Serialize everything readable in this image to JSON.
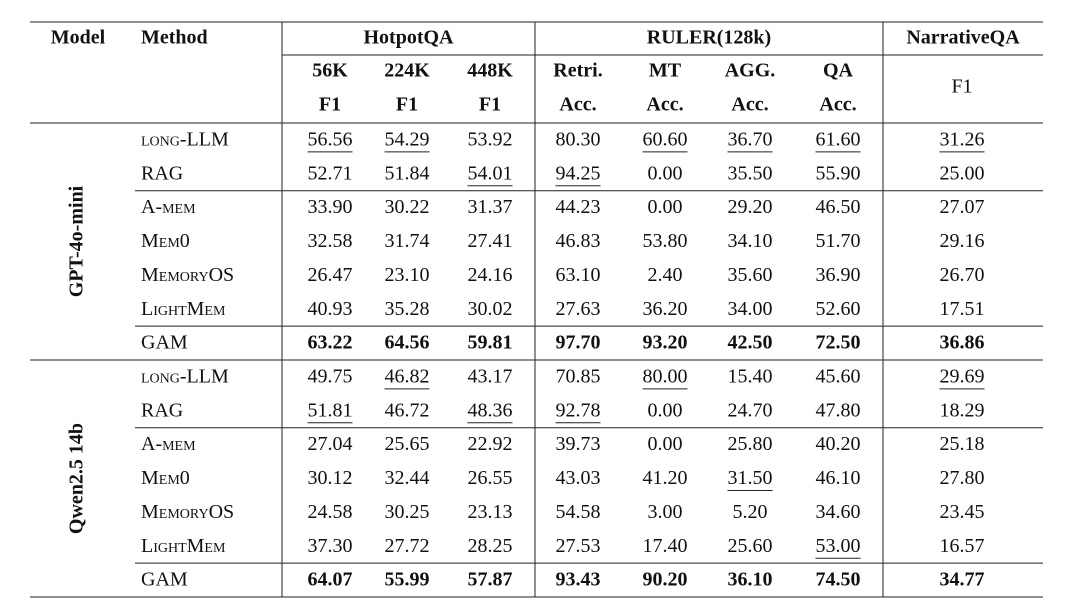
{
  "table": {
    "header": {
      "model": "Model",
      "method": "Method",
      "groups": [
        {
          "label": "HotpotQA",
          "columns": [
            [
              "56K",
              "F1"
            ],
            [
              "224K",
              "F1"
            ],
            [
              "448K",
              "F1"
            ]
          ]
        },
        {
          "label": "RULER(128k)",
          "columns": [
            [
              "Retri.",
              "Acc."
            ],
            [
              "MT",
              "Acc."
            ],
            [
              "AGG.",
              "Acc."
            ],
            [
              "QA",
              "Acc."
            ]
          ]
        },
        {
          "label": "NarrativeQA",
          "columns": [
            [
              "F1"
            ]
          ]
        }
      ]
    },
    "groups": [
      {
        "model": "GPT-4o-mini",
        "sections": [
          [
            {
              "method": "long-LLM",
              "values": [
                "56.56",
                "54.29",
                "53.92",
                "80.30",
                "60.60",
                "36.70",
                "61.60",
                "31.26"
              ],
              "underline": [
                0,
                1,
                4,
                5,
                6,
                7
              ]
            },
            {
              "method": "RAG",
              "values": [
                "52.71",
                "51.84",
                "54.01",
                "94.25",
                "0.00",
                "35.50",
                "55.90",
                "25.00"
              ],
              "underline": [
                2,
                3
              ]
            }
          ],
          [
            {
              "method": "A-mem",
              "values": [
                "33.90",
                "30.22",
                "31.37",
                "44.23",
                "0.00",
                "29.20",
                "46.50",
                "27.07"
              ],
              "underline": []
            },
            {
              "method": "Mem0",
              "values": [
                "32.58",
                "31.74",
                "27.41",
                "46.83",
                "53.80",
                "34.10",
                "51.70",
                "29.16"
              ],
              "underline": []
            },
            {
              "method": "MemoryOS",
              "values": [
                "26.47",
                "23.10",
                "24.16",
                "63.10",
                "2.40",
                "35.60",
                "36.90",
                "26.70"
              ],
              "underline": []
            },
            {
              "method": "LightMem",
              "values": [
                "40.93",
                "35.28",
                "30.02",
                "27.63",
                "36.20",
                "34.00",
                "52.60",
                "17.51"
              ],
              "underline": []
            }
          ],
          [
            {
              "method": "GAM",
              "values": [
                "63.22",
                "64.56",
                "59.81",
                "97.70",
                "93.20",
                "42.50",
                "72.50",
                "36.86"
              ],
              "underline": [],
              "bold": true
            }
          ]
        ]
      },
      {
        "model": "Qwen2.5 14b",
        "sections": [
          [
            {
              "method": "long-LLM",
              "values": [
                "49.75",
                "46.82",
                "43.17",
                "70.85",
                "80.00",
                "15.40",
                "45.60",
                "29.69"
              ],
              "underline": [
                1,
                4,
                7
              ]
            },
            {
              "method": "RAG",
              "values": [
                "51.81",
                "46.72",
                "48.36",
                "92.78",
                "0.00",
                "24.70",
                "47.80",
                "18.29"
              ],
              "underline": [
                0,
                2,
                3
              ]
            }
          ],
          [
            {
              "method": "A-mem",
              "values": [
                "27.04",
                "25.65",
                "22.92",
                "39.73",
                "0.00",
                "25.80",
                "40.20",
                "25.18"
              ],
              "underline": []
            },
            {
              "method": "Mem0",
              "values": [
                "30.12",
                "32.44",
                "26.55",
                "43.03",
                "41.20",
                "31.50",
                "46.10",
                "27.80"
              ],
              "underline": [
                5
              ]
            },
            {
              "method": "MemoryOS",
              "values": [
                "24.58",
                "30.25",
                "23.13",
                "54.58",
                "3.00",
                "5.20",
                "34.60",
                "23.45"
              ],
              "underline": []
            },
            {
              "method": "LightMem",
              "values": [
                "37.30",
                "27.72",
                "28.25",
                "27.53",
                "17.40",
                "25.60",
                "53.00",
                "16.57"
              ],
              "underline": [
                6
              ]
            }
          ],
          [
            {
              "method": "GAM",
              "values": [
                "64.07",
                "55.99",
                "57.87",
                "93.43",
                "90.20",
                "36.10",
                "74.50",
                "34.77"
              ],
              "underline": [],
              "bold": true
            }
          ]
        ]
      }
    ]
  }
}
